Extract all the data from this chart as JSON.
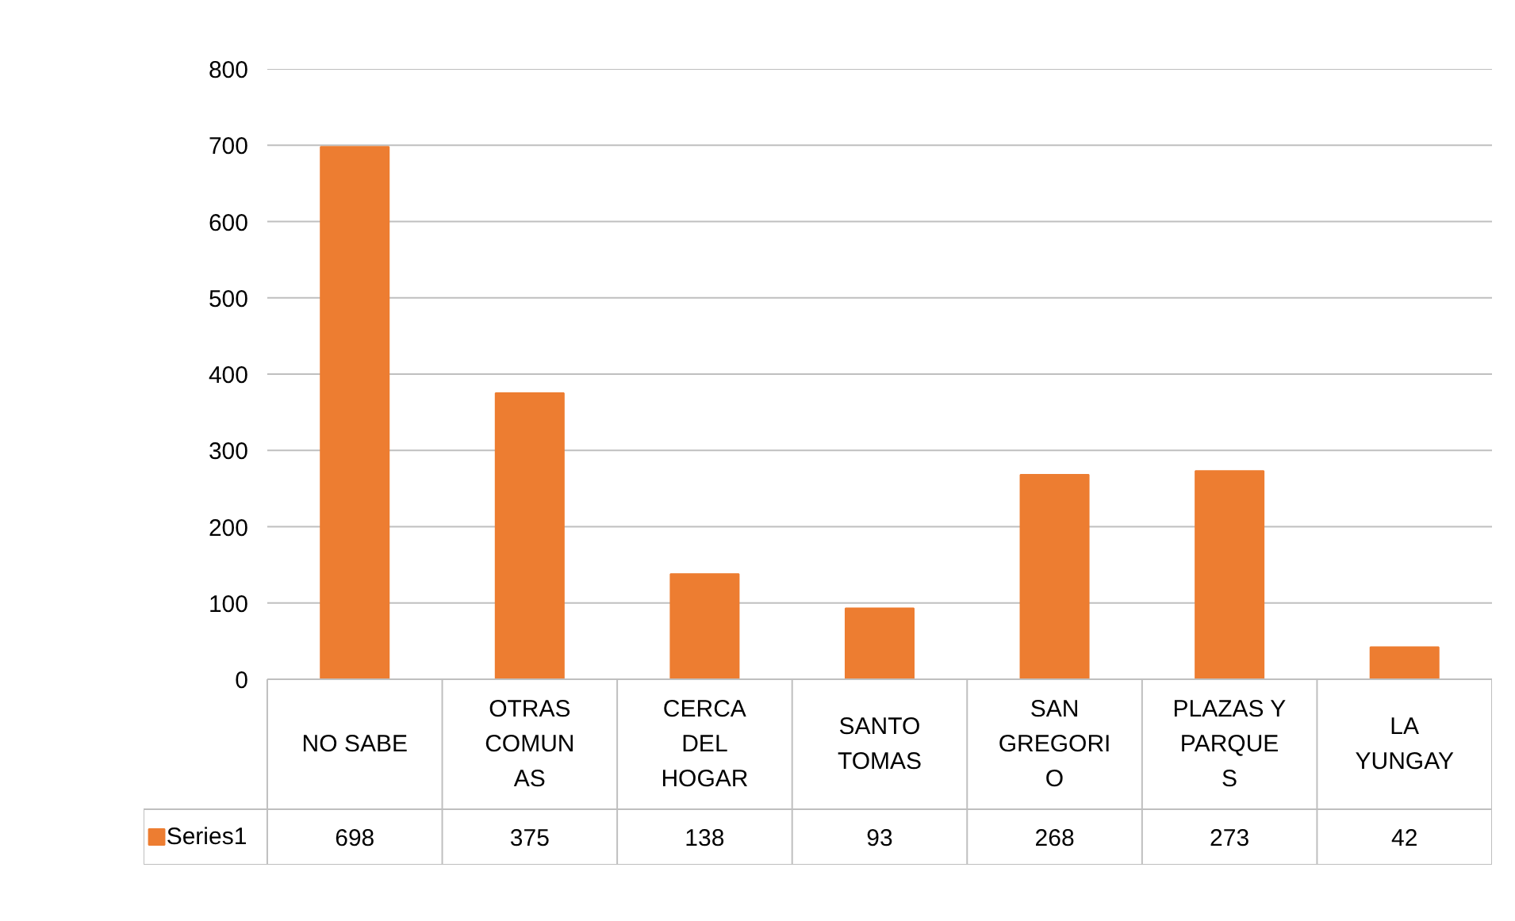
{
  "chart_data": {
    "type": "bar",
    "categories": [
      "NO SABE",
      "OTRAS\nCOMUN\nAS",
      "CERCA\nDEL\nHOGAR",
      "SANTO\nTOMAS",
      "SAN\nGREGORI\nO",
      "PLAZAS Y\nPARQUE\nS",
      "LA\nYUNGAY"
    ],
    "series": [
      {
        "name": "Series1",
        "color": "#ed7d31",
        "values": [
          698,
          375,
          138,
          93,
          268,
          273,
          42
        ]
      }
    ],
    "ylim": [
      0,
      800
    ],
    "yticks": [
      0,
      100,
      200,
      300,
      400,
      500,
      600,
      700,
      800
    ],
    "grid": "y",
    "data_labels": true,
    "legend": "bottom left"
  }
}
